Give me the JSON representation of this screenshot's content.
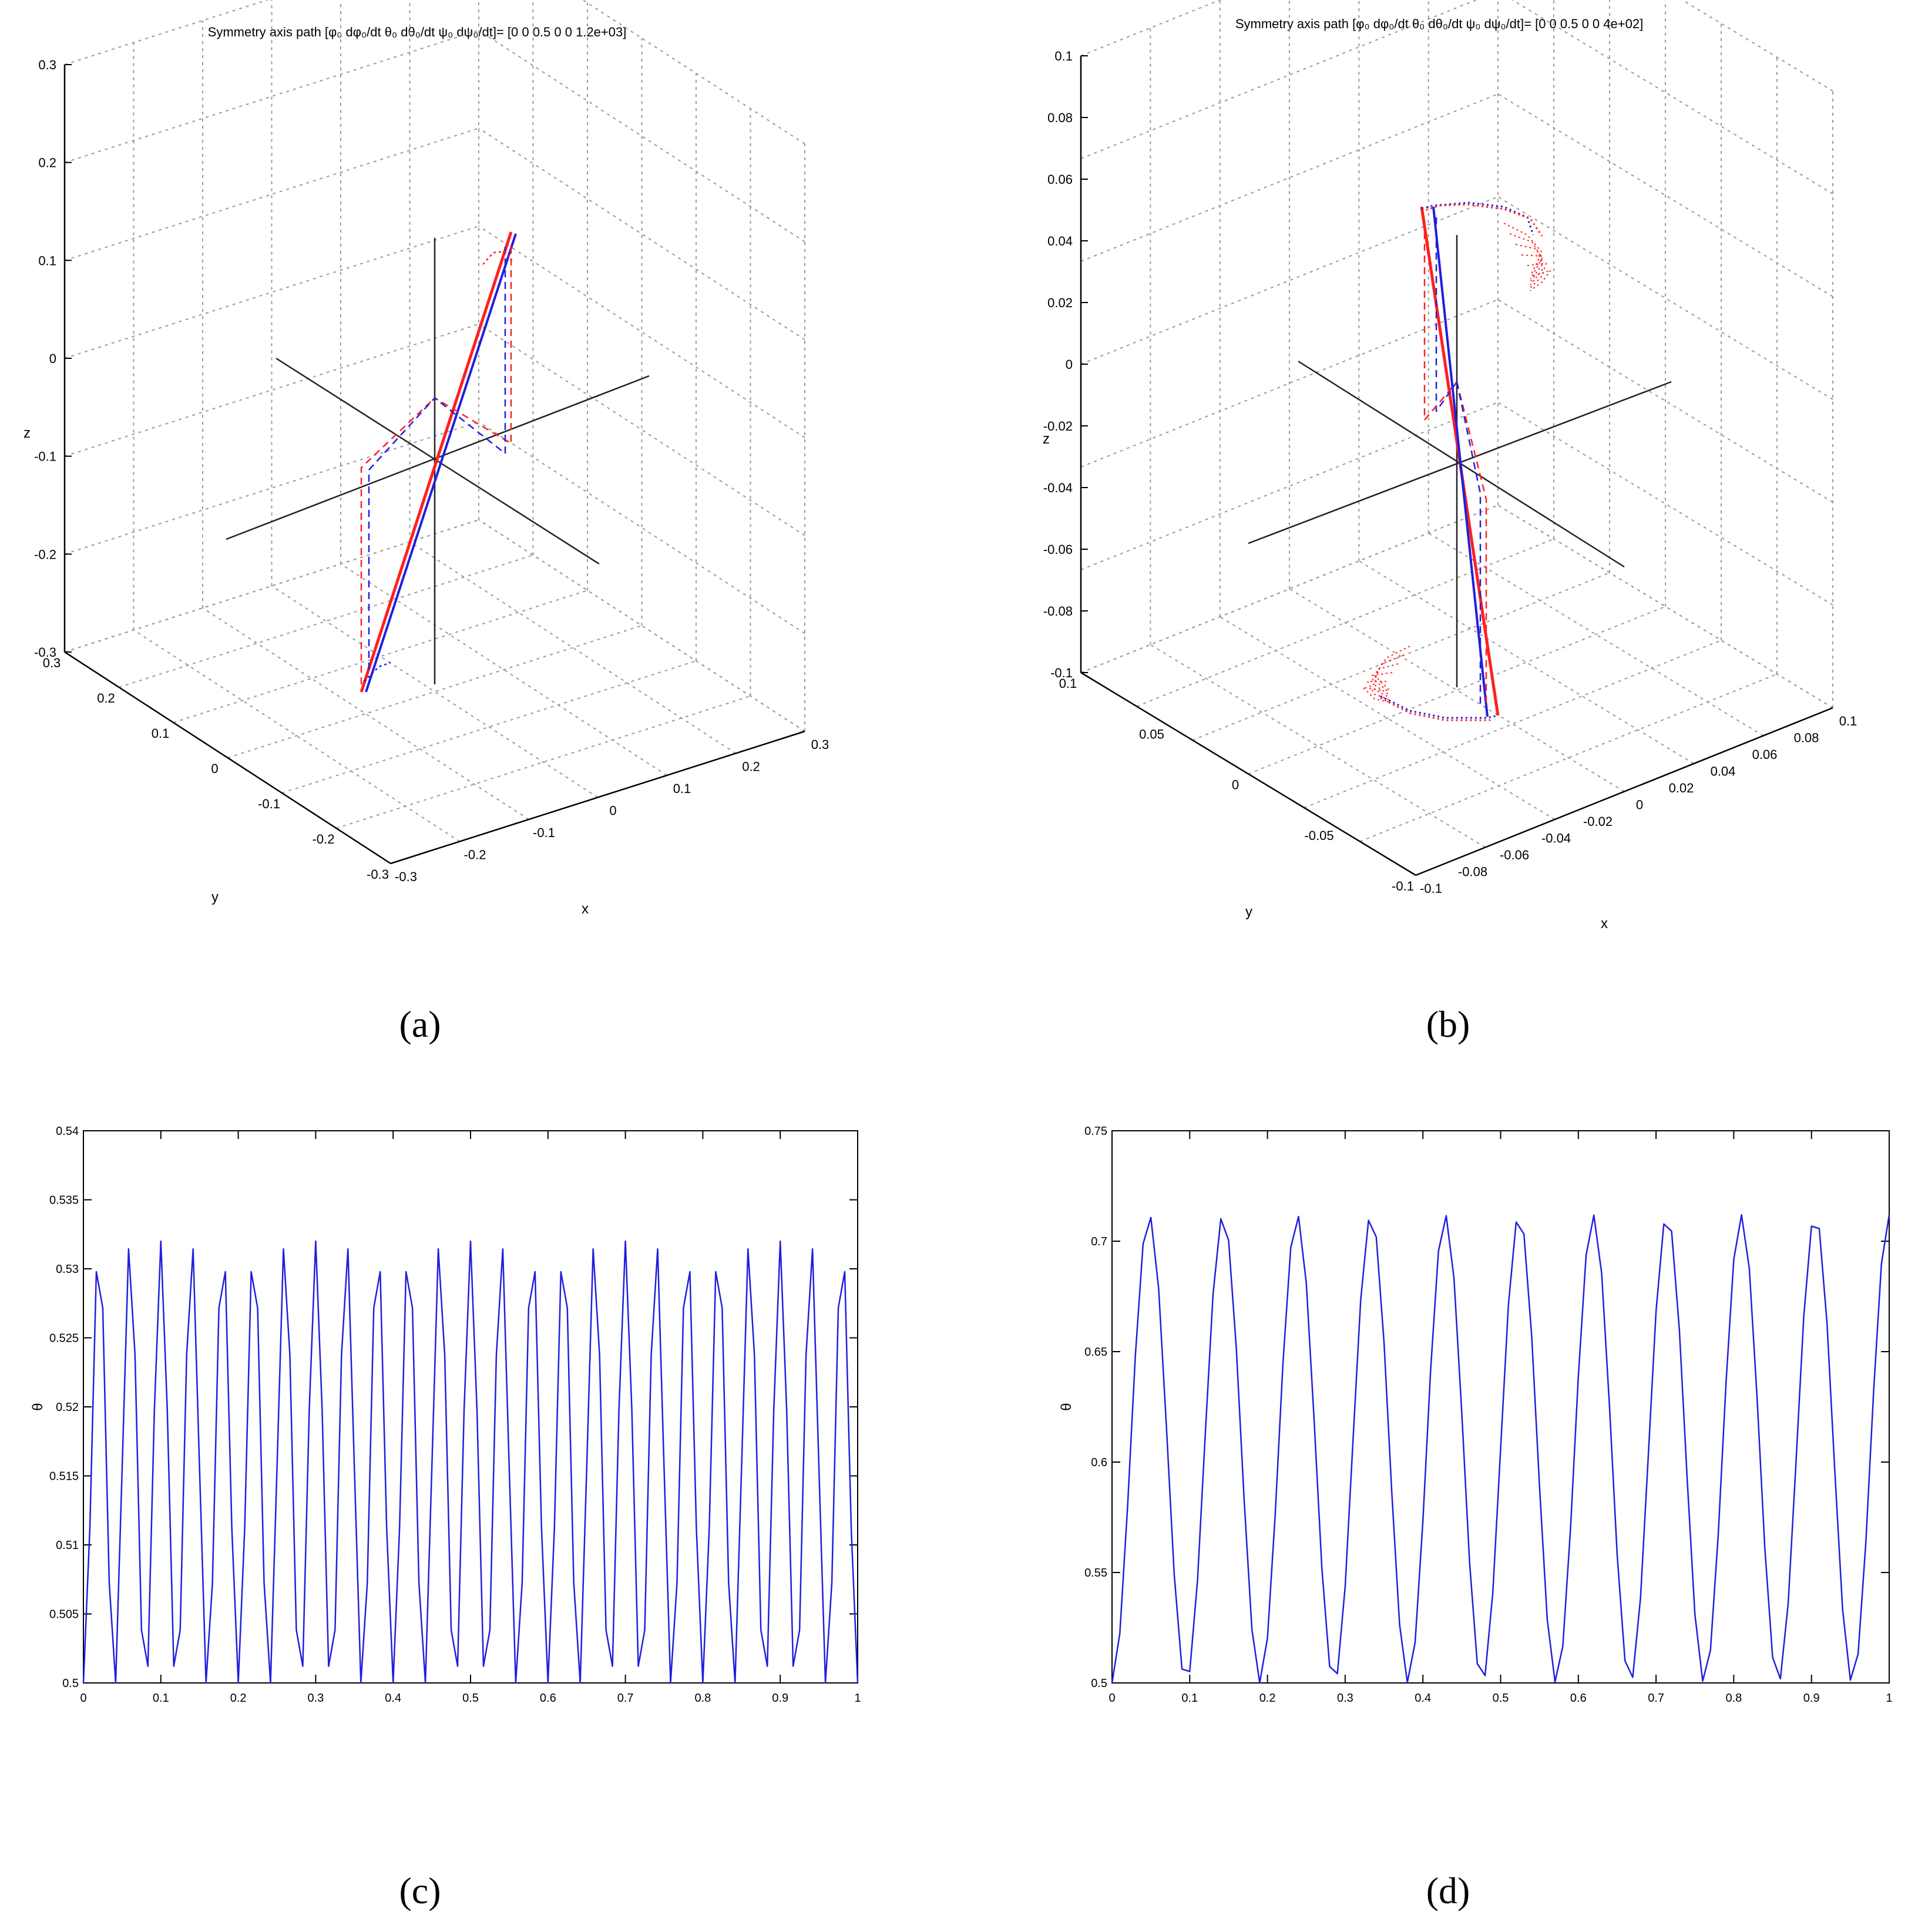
{
  "captions": {
    "a": "(a)",
    "b": "(b)",
    "c": "(c)",
    "d": "(d)"
  },
  "colors": {
    "red": "#ff2020",
    "blue": "#1f1fdd",
    "axis": "#222222",
    "grid": "#9a9a9a"
  },
  "chart_data": [
    {
      "id": "a",
      "type": "line3d",
      "title": "Symmetry axis path [φ₀ dφ₀/dt  θ₀ dθ₀/dt ψ₀ dψ₀/dt]= [0 0 0.5 0 0 1.2e+03]",
      "xlabel": "x",
      "ylabel": "y",
      "zlabel": "z",
      "z_ticks": [
        "0.3",
        "0.2",
        "0.1",
        "0",
        "-0.1",
        "-0.2",
        "-0.3"
      ],
      "y_ticks": [
        "0.3",
        "0.2",
        "0.1",
        "0",
        "-0.1",
        "-0.2",
        "-0.3"
      ],
      "x_ticks": [
        "-0.3",
        "-0.2",
        "-0.1",
        "0",
        "0.1",
        "0.2",
        "0.3"
      ],
      "series": [
        {
          "name": "symmetry axis (red, solid)",
          "color": "red",
          "style": "solid"
        },
        {
          "name": "symmetry axis (blue, solid)",
          "color": "blue",
          "style": "solid"
        },
        {
          "name": "projection (red, dashed)",
          "color": "red",
          "style": "dashed"
        },
        {
          "name": "projection (blue, dashed)",
          "color": "blue",
          "style": "dashed"
        }
      ]
    },
    {
      "id": "b",
      "type": "line3d",
      "title": "Symmetry axis path [φ₀ dφ₀/dt  θ₀ dθ₀/dt ψ₀ dψ₀/dt]= [0 0 0.5 0 0 4e+02]",
      "xlabel": "x",
      "ylabel": "y",
      "zlabel": "z",
      "z_ticks": [
        "0.1",
        "0.08",
        "0.06",
        "0.04",
        "0.02",
        "0",
        "-0.02",
        "-0.04",
        "-0.06",
        "-0.08",
        "-0.1"
      ],
      "y_ticks": [
        "0.1",
        "0.05",
        "0",
        "-0.05",
        "-0.1"
      ],
      "x_ticks": [
        "-0.1",
        "-0.08",
        "-0.06",
        "-0.04",
        "-0.02",
        "0",
        "0.02",
        "0.04",
        "0.06",
        "0.08",
        "0.1"
      ],
      "series": [
        {
          "name": "symmetry axis (red, solid)",
          "color": "red",
          "style": "solid"
        },
        {
          "name": "symmetry axis (blue, solid)",
          "color": "blue",
          "style": "solid"
        },
        {
          "name": "tip path (red, dotted)",
          "color": "red",
          "style": "dotted"
        },
        {
          "name": "tip path (blue, dotted)",
          "color": "blue",
          "style": "dotted"
        }
      ]
    },
    {
      "id": "c",
      "type": "line",
      "xlabel": "",
      "ylabel": "θ",
      "xlim": [
        0,
        1
      ],
      "ylim": [
        0.5,
        0.54
      ],
      "x_ticks": [
        "0",
        "0.1",
        "0.2",
        "0.3",
        "0.4",
        "0.5",
        "0.6",
        "0.7",
        "0.8",
        "0.9",
        "1"
      ],
      "y_ticks": [
        "0.5",
        "0.505",
        "0.51",
        "0.515",
        "0.52",
        "0.525",
        "0.53",
        "0.535",
        "0.54"
      ],
      "series": [
        {
          "name": "theta",
          "color": "blue",
          "mean": 0.5155,
          "amplitude": 0.0165,
          "frequency": 25,
          "points": 121
        }
      ]
    },
    {
      "id": "d",
      "type": "line",
      "xlabel": "",
      "ylabel": "θ",
      "xlim": [
        0,
        1
      ],
      "ylim": [
        0.5,
        0.75
      ],
      "x_ticks": [
        "0",
        "0.1",
        "0.2",
        "0.3",
        "0.4",
        "0.5",
        "0.6",
        "0.7",
        "0.8",
        "0.9",
        "1"
      ],
      "y_ticks": [
        "0.5",
        "0.55",
        "0.6",
        "0.65",
        "0.7",
        "0.75"
      ],
      "series": [
        {
          "name": "theta",
          "color": "blue",
          "mean": 0.606,
          "amplitude": 0.106,
          "frequency": 10.5,
          "points": 101
        }
      ]
    }
  ]
}
